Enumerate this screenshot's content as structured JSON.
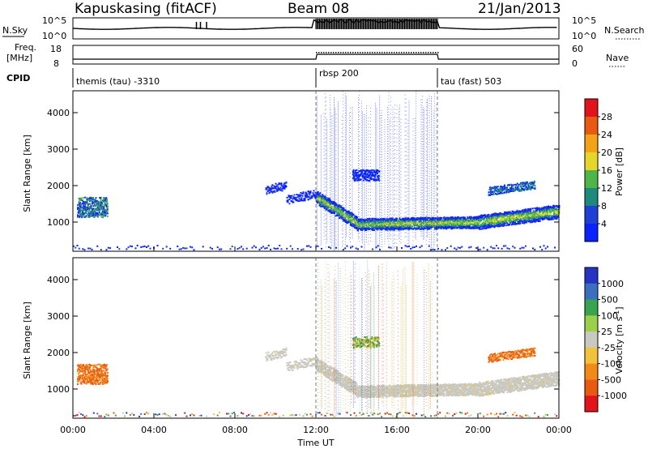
{
  "header": {
    "station": "Kapuskasing (fitACF)",
    "beam": "Beam 08",
    "date": "21/Jan/2013"
  },
  "top_panels": {
    "nsky_label": "N.Sky",
    "nsky_ticks": [
      "10^5",
      "10^0"
    ],
    "nsearch_label": "N.Search",
    "nsearch_ticks": [
      "10^5",
      "10^0"
    ],
    "freq_label_1": "Freq.",
    "freq_label_2": "[MHz]",
    "freq_ticks": [
      "18",
      "8"
    ],
    "nave_label": "Nave",
    "nave_ticks": [
      "60",
      "0"
    ],
    "cpid_label": "CPID",
    "cpid_segments": [
      {
        "label": "themis (tau) -3310",
        "start_hour": 0
      },
      {
        "label": "rbsp 200",
        "start_hour": 12
      },
      {
        "label": "tau (fast) 503",
        "start_hour": 18
      }
    ]
  },
  "chart_data": [
    {
      "type": "heatmap",
      "quantity": "power",
      "ylabel": "Slant Range [km]",
      "xlabel": "Time UT",
      "xlim_hours": [
        0,
        24
      ],
      "ylim": [
        200,
        4600
      ],
      "yticks": [
        "1000",
        "2000",
        "3000",
        "4000"
      ],
      "xticks": [
        "00:00",
        "04:00",
        "08:00",
        "12:00",
        "16:00",
        "20:00",
        "00:00"
      ],
      "colorbar_label": "Power [dB]",
      "colorbar_ticks": [
        "28",
        "24",
        "20",
        "16",
        "12",
        "8",
        "4"
      ],
      "colors": [
        "#0a22ff",
        "#1f3fd6",
        "#1d8a7c",
        "#4fb548",
        "#e6d62a",
        "#f2a318",
        "#e85a12",
        "#e0141a"
      ],
      "features": [
        {
          "name": "evening echo patch",
          "hour_range": [
            0.3,
            1.6
          ],
          "range_km": [
            1150,
            1700
          ],
          "power_db": 10
        },
        {
          "name": "midday low band",
          "hour_range": [
            9.5,
            12.0
          ],
          "range_km": [
            1500,
            2100
          ],
          "power_db": 8
        },
        {
          "name": "main echo band",
          "hour_range": [
            12.0,
            24.0
          ],
          "range_km": [
            800,
            1700
          ],
          "power_db": 20
        },
        {
          "name": "high range patch",
          "hour_range": [
            13.8,
            15.1
          ],
          "range_km": [
            2150,
            2450
          ],
          "power_db": 10
        },
        {
          "name": "late patch",
          "hour_range": [
            21.5,
            22.5
          ],
          "range_km": [
            1600,
            2050
          ],
          "power_db": 12
        }
      ]
    },
    {
      "type": "heatmap",
      "quantity": "velocity",
      "ylabel": "Slant Range [km]",
      "xlabel": "Time UT",
      "xlim_hours": [
        0,
        24
      ],
      "ylim": [
        200,
        4600
      ],
      "yticks": [
        "1000",
        "2000",
        "3000",
        "4000"
      ],
      "xticks": [
        "00:00",
        "04:00",
        "08:00",
        "12:00",
        "16:00",
        "20:00",
        "00:00"
      ],
      "colorbar_label": "Velocity [m s",
      "colorbar_sup": "-1",
      "colorbar_unit_close": "]",
      "colorbar_ticks": [
        "1000",
        "500",
        "100",
        "25",
        "-25",
        "-100",
        "-500",
        "-1000"
      ],
      "colors": [
        "#2633c4",
        "#3d6fc0",
        "#39a34f",
        "#9ad04a",
        "#c9c9c0",
        "#f2c23c",
        "#f28a1a",
        "#e85a12",
        "#e0141a"
      ],
      "features": [
        {
          "name": "evening echo patch",
          "hour_range": [
            0.3,
            1.6
          ],
          "range_km": [
            1150,
            1700
          ],
          "velocity": -300
        },
        {
          "name": "midday ground scatter",
          "hour_range": [
            9.5,
            12.0
          ],
          "range_km": [
            1500,
            2100
          ],
          "velocity": 0
        },
        {
          "name": "main ground scatter band",
          "hour_range": [
            12.0,
            24.0
          ],
          "range_km": [
            800,
            1700
          ],
          "velocity": 0
        },
        {
          "name": "high range patch",
          "hour_range": [
            13.8,
            15.1
          ],
          "range_km": [
            2150,
            2450
          ],
          "velocity": 100
        },
        {
          "name": "late patch",
          "hour_range": [
            21.5,
            22.5
          ],
          "range_km": [
            1600,
            2050
          ],
          "velocity": -300
        }
      ]
    }
  ]
}
